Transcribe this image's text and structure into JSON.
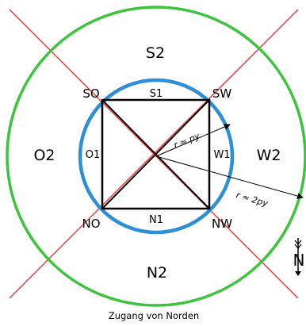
{
  "colors": {
    "outer_circle": "#3cc43c",
    "inner_circle": "#2f8fd6",
    "diagonal_lines": "#e33b3b",
    "square": "#000000"
  },
  "zones": {
    "outer": {
      "south": "S2",
      "west": "O2",
      "east": "W2",
      "north": "N2"
    },
    "inner": {
      "south": "S1",
      "west": "O1",
      "east": "W1",
      "north": "N1"
    }
  },
  "corners": {
    "top_left": "SO",
    "top_right": "SW",
    "bottom_left": "NO",
    "bottom_right": "NW"
  },
  "radii": {
    "inner": "r ≈ py",
    "outer": "r ≈ 2py"
  },
  "north_arrow": {
    "letter": "N",
    "icon": "north-arrow-icon"
  },
  "caption": "Zugang von Norden"
}
